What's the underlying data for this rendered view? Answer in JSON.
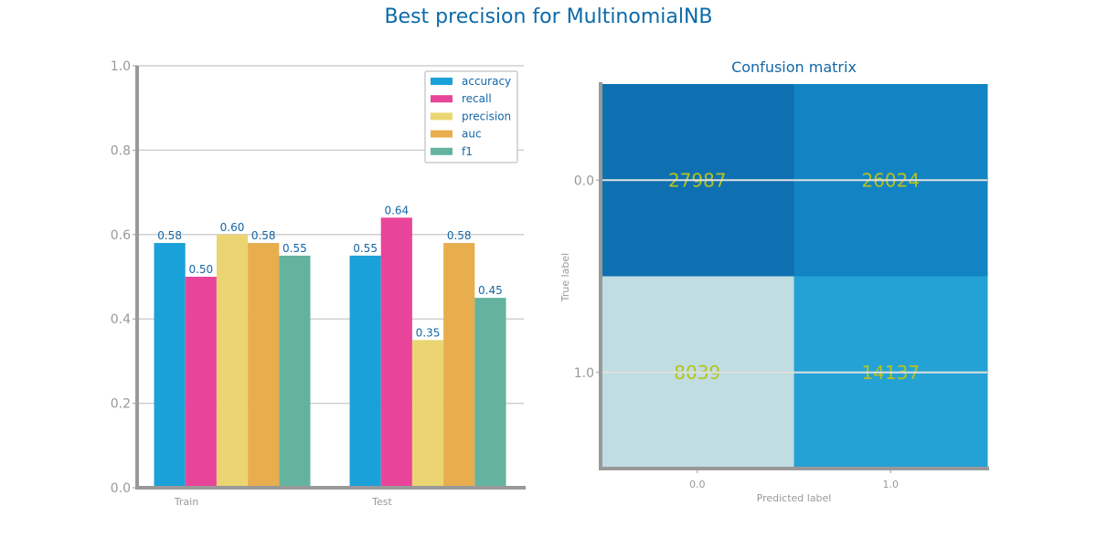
{
  "figure": {
    "title": "Best precision for MultinomialNB"
  },
  "chart_data": [
    {
      "type": "bar",
      "title": "",
      "xlabel": "",
      "ylabel": "",
      "categories": [
        "Train",
        "Test"
      ],
      "ylim": [
        0,
        1.0
      ],
      "yticks": [
        "0.0",
        "0.2",
        "0.4",
        "0.6",
        "0.8",
        "1.0"
      ],
      "grid": "horizontal",
      "legend_position": "top-right",
      "series": [
        {
          "name": "accuracy",
          "color": "#1ba1d9",
          "values": [
            0.58,
            0.55
          ],
          "labels": [
            "0.58",
            "0.55"
          ]
        },
        {
          "name": "recall",
          "color": "#e8459a",
          "values": [
            0.5,
            0.64
          ],
          "labels": [
            "0.50",
            "0.64"
          ]
        },
        {
          "name": "precision",
          "color": "#ebd572",
          "values": [
            0.6,
            0.35
          ],
          "labels": [
            "0.60",
            "0.35"
          ]
        },
        {
          "name": "auc",
          "color": "#e8ad4d",
          "values": [
            0.58,
            0.58
          ],
          "labels": [
            "0.58",
            "0.58"
          ]
        },
        {
          "name": "f1",
          "color": "#64b39e",
          "values": [
            0.55,
            0.45
          ],
          "labels": [
            "0.55",
            "0.45"
          ]
        }
      ]
    },
    {
      "type": "heatmap",
      "title": "Confusion matrix",
      "xlabel": "Predicted label",
      "ylabel": "True label",
      "x_ticks": [
        "0.0",
        "1.0"
      ],
      "y_ticks": [
        "0.0",
        "1.0"
      ],
      "values": [
        [
          27987,
          26024
        ],
        [
          8039,
          14137
        ]
      ],
      "cell_labels": [
        [
          "27987",
          "26024"
        ],
        [
          "8039",
          "14137"
        ]
      ],
      "cell_colors": [
        [
          "#0e70b1",
          "#1284c4"
        ],
        [
          "#c0dde1",
          "#24a2d5"
        ]
      ]
    }
  ]
}
